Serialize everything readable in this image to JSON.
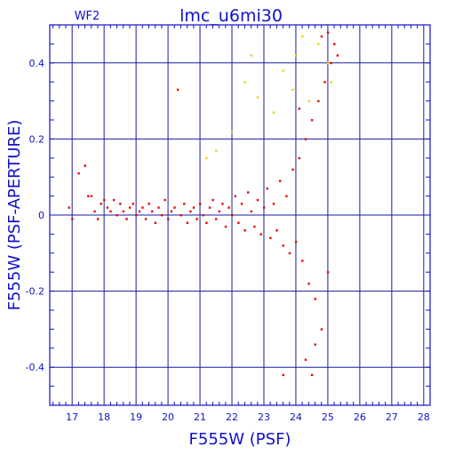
{
  "chart_data": {
    "type": "scatter",
    "title": "lmc_u6mi30",
    "subtitle": "WF2",
    "xlabel": "F555W (PSF)",
    "ylabel": "F555W (PSF-APERTURE)",
    "xlim": [
      16.3,
      28.2
    ],
    "ylim": [
      -0.5,
      0.5
    ],
    "x_ticks": [
      "17",
      "18",
      "19",
      "20",
      "21",
      "22",
      "23",
      "24",
      "25",
      "26",
      "27",
      "28"
    ],
    "y_ticks": [
      "-0.4",
      "-0.2",
      "0",
      "0.2",
      "0.4"
    ],
    "grid": true,
    "colors": {
      "axis": "#1010cc",
      "grid": "#1a1aa0",
      "main_series": "#ee0000",
      "secondary_series": "#f0d000"
    },
    "series": [
      {
        "color": "#ee0000",
        "points": [
          [
            16.9,
            0.02
          ],
          [
            17.0,
            -0.01
          ],
          [
            17.2,
            0.11
          ],
          [
            17.4,
            0.13
          ],
          [
            17.5,
            0.05
          ],
          [
            17.6,
            0.05
          ],
          [
            17.7,
            0.01
          ],
          [
            17.8,
            -0.01
          ],
          [
            17.9,
            0.03
          ],
          [
            18.0,
            0.04
          ],
          [
            18.1,
            0.02
          ],
          [
            18.2,
            0.01
          ],
          [
            18.3,
            0.04
          ],
          [
            18.4,
            0.0
          ],
          [
            18.5,
            0.03
          ],
          [
            18.6,
            0.01
          ],
          [
            18.7,
            -0.01
          ],
          [
            18.8,
            0.02
          ],
          [
            18.9,
            0.03
          ],
          [
            19.0,
            0.0
          ],
          [
            19.1,
            0.01
          ],
          [
            19.2,
            0.02
          ],
          [
            19.3,
            -0.01
          ],
          [
            19.4,
            0.03
          ],
          [
            19.5,
            0.01
          ],
          [
            19.6,
            -0.02
          ],
          [
            19.7,
            0.02
          ],
          [
            19.8,
            0.0
          ],
          [
            19.9,
            0.04
          ],
          [
            20.0,
            -0.01
          ],
          [
            20.1,
            0.01
          ],
          [
            20.2,
            0.02
          ],
          [
            20.3,
            0.33
          ],
          [
            20.4,
            0.0
          ],
          [
            20.5,
            0.03
          ],
          [
            20.6,
            -0.02
          ],
          [
            20.7,
            0.01
          ],
          [
            20.8,
            0.02
          ],
          [
            20.9,
            -0.01
          ],
          [
            21.0,
            0.03
          ],
          [
            21.1,
            0.0
          ],
          [
            21.2,
            -0.02
          ],
          [
            21.3,
            0.02
          ],
          [
            21.4,
            0.04
          ],
          [
            21.5,
            -0.01
          ],
          [
            21.6,
            0.01
          ],
          [
            21.7,
            0.03
          ],
          [
            21.8,
            -0.03
          ],
          [
            21.9,
            0.02
          ],
          [
            22.0,
            0.0
          ],
          [
            22.1,
            0.05
          ],
          [
            22.2,
            -0.02
          ],
          [
            22.3,
            0.03
          ],
          [
            22.4,
            -0.04
          ],
          [
            22.5,
            0.06
          ],
          [
            22.6,
            0.01
          ],
          [
            22.7,
            -0.03
          ],
          [
            22.8,
            0.04
          ],
          [
            22.9,
            -0.05
          ],
          [
            23.0,
            0.02
          ],
          [
            23.1,
            0.07
          ],
          [
            23.2,
            -0.06
          ],
          [
            23.3,
            0.03
          ],
          [
            23.4,
            -0.04
          ],
          [
            23.5,
            0.09
          ],
          [
            23.6,
            -0.08
          ],
          [
            23.7,
            0.05
          ],
          [
            23.8,
            -0.1
          ],
          [
            23.9,
            0.12
          ],
          [
            24.0,
            -0.07
          ],
          [
            24.1,
            0.15
          ],
          [
            24.2,
            -0.12
          ],
          [
            24.3,
            0.2
          ],
          [
            24.4,
            -0.18
          ],
          [
            24.5,
            0.25
          ],
          [
            24.6,
            -0.22
          ],
          [
            24.7,
            0.3
          ],
          [
            24.8,
            -0.3
          ],
          [
            24.9,
            0.35
          ],
          [
            25.0,
            -0.15
          ],
          [
            25.1,
            0.4
          ],
          [
            25.2,
            0.45
          ],
          [
            23.6,
            -0.42
          ],
          [
            24.5,
            -0.42
          ],
          [
            24.3,
            -0.38
          ],
          [
            24.6,
            -0.34
          ],
          [
            24.8,
            0.47
          ],
          [
            25.0,
            0.48
          ],
          [
            25.3,
            0.42
          ],
          [
            24.1,
            0.28
          ]
        ]
      },
      {
        "color": "#f0d000",
        "points": [
          [
            21.5,
            0.17
          ],
          [
            22.0,
            0.22
          ],
          [
            22.4,
            0.35
          ],
          [
            22.8,
            0.31
          ],
          [
            23.3,
            0.27
          ],
          [
            23.6,
            0.38
          ],
          [
            24.0,
            0.42
          ],
          [
            24.4,
            0.3
          ],
          [
            24.7,
            0.45
          ],
          [
            25.0,
            0.4
          ],
          [
            21.2,
            0.15
          ],
          [
            22.6,
            0.42
          ],
          [
            23.9,
            0.33
          ],
          [
            24.2,
            0.47
          ],
          [
            25.1,
            0.35
          ]
        ]
      }
    ]
  }
}
